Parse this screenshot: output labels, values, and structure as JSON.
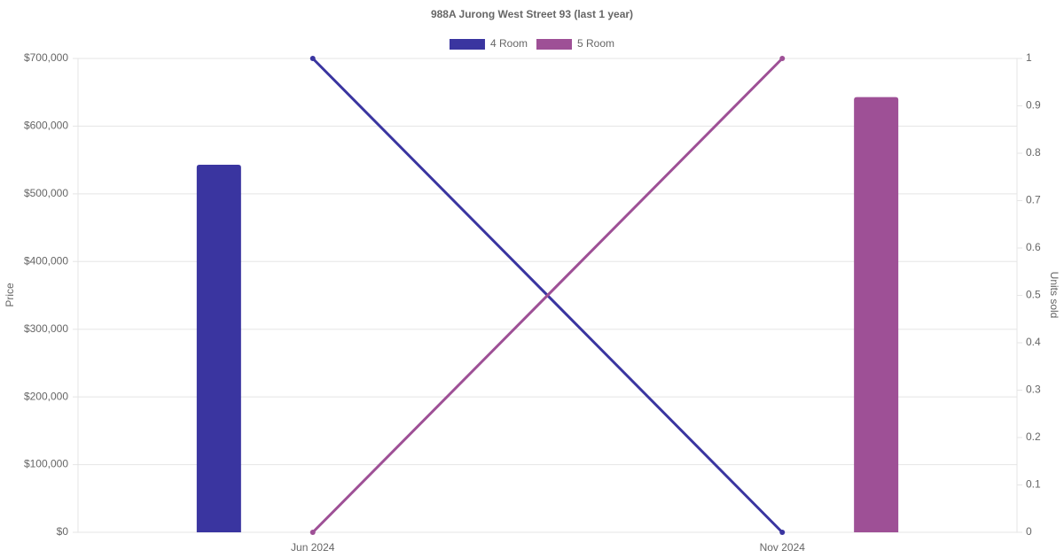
{
  "chart_data": {
    "type": "bar-line",
    "title": "988A Jurong West Street 93 (last 1 year)",
    "categories": [
      "Jun 2024",
      "Nov 2024"
    ],
    "series": [
      {
        "name": "4 Room",
        "color": "#3a35a0",
        "values": [
          543000,
          null
        ],
        "units_sold": [
          1,
          0
        ]
      },
      {
        "name": "5 Room",
        "color": "#9e5096",
        "values": [
          null,
          643000
        ],
        "units_sold": [
          0,
          1
        ]
      }
    ],
    "y_label": "Price",
    "y2_label": "Units sold",
    "ylim": [
      0,
      700000
    ],
    "yticks": [
      {
        "value": 0,
        "label": "$0"
      },
      {
        "value": 100000,
        "label": "$100,000"
      },
      {
        "value": 200000,
        "label": "$200,000"
      },
      {
        "value": 300000,
        "label": "$300,000"
      },
      {
        "value": 400000,
        "label": "$400,000"
      },
      {
        "value": 500000,
        "label": "$500,000"
      },
      {
        "value": 600000,
        "label": "$600,000"
      },
      {
        "value": 700000,
        "label": "$700,000"
      }
    ],
    "y2lim": [
      0,
      1
    ],
    "y2ticks": [
      0,
      0.1,
      0.2,
      0.3,
      0.4,
      0.5,
      0.6,
      0.7,
      0.8,
      0.9,
      1
    ],
    "grid": true,
    "legend": "top"
  }
}
